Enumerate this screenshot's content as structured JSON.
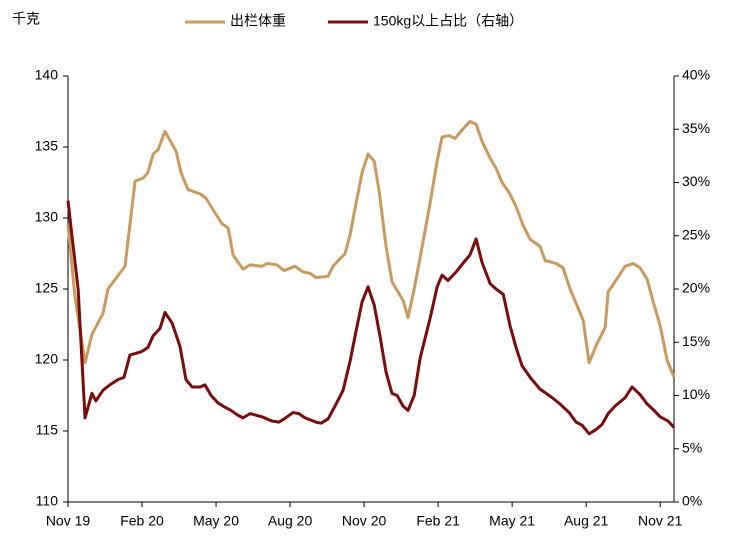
{
  "chart_data": {
    "type": "line",
    "y_label": "千克",
    "xlim": [
      0,
      24.56
    ],
    "xticks": [
      {
        "value": 0,
        "label": "Nov 19"
      },
      {
        "value": 3,
        "label": "Feb 20"
      },
      {
        "value": 6,
        "label": "May 20"
      },
      {
        "value": 9,
        "label": "Aug 20"
      },
      {
        "value": 12,
        "label": "Nov 20"
      },
      {
        "value": 15,
        "label": "Feb 21"
      },
      {
        "value": 18,
        "label": "May 21"
      },
      {
        "value": 21,
        "label": "Aug 21"
      },
      {
        "value": 24,
        "label": "Nov 21"
      }
    ],
    "ylim": [
      110,
      140
    ],
    "yticks": [
      110,
      115,
      120,
      125,
      130,
      135,
      140
    ],
    "y2lim": [
      0,
      40
    ],
    "y2ticks": [
      {
        "value": 0,
        "label": "0%"
      },
      {
        "value": 5,
        "label": "5%"
      },
      {
        "value": 10,
        "label": "10%"
      },
      {
        "value": 15,
        "label": "15%"
      },
      {
        "value": 20,
        "label": "20%"
      },
      {
        "value": 25,
        "label": "25%"
      },
      {
        "value": 30,
        "label": "30%"
      },
      {
        "value": 35,
        "label": "35%"
      },
      {
        "value": 40,
        "label": "40%"
      }
    ],
    "legend": "top",
    "series": [
      {
        "name": "出栏体重",
        "color": "#c99a5b",
        "x": [
          0,
          0.28,
          0.69,
          0.97,
          1.42,
          1.62,
          2.31,
          2.72,
          3.04,
          3.24,
          3.45,
          3.65,
          3.93,
          4.38,
          4.58,
          4.86,
          5.35,
          5.59,
          5.8,
          6.24,
          6.49,
          6.69,
          7.09,
          7.38,
          7.86,
          8.07,
          8.47,
          8.76,
          9.2,
          9.53,
          9.81,
          10.05,
          10.54,
          10.74,
          11.23,
          11.43,
          11.67,
          11.92,
          12.16,
          12.41,
          12.61,
          12.89,
          13.13,
          13.58,
          13.78,
          14.03,
          14.27,
          14.67,
          14.96,
          15.16,
          15.44,
          15.69,
          15.97,
          16.29,
          16.54,
          16.78,
          17.11,
          17.35,
          17.59,
          17.88,
          18.16,
          18.44,
          18.73,
          19.13,
          19.34,
          19.78,
          20.06,
          20.35,
          20.59,
          20.88,
          21.12,
          21.4,
          21.77,
          21.89,
          22.09,
          22.58,
          22.9,
          23.18,
          23.47,
          23.75,
          24,
          24.28,
          24.56
        ],
        "values": [
          129.5,
          124.5,
          119.8,
          121.8,
          123.3,
          125,
          126.6,
          132.6,
          132.8,
          133.2,
          134.5,
          134.8,
          136.1,
          134.7,
          133.2,
          132,
          131.7,
          131.4,
          130.8,
          129.6,
          129.3,
          127.4,
          126.4,
          126.7,
          126.6,
          126.8,
          126.7,
          126.3,
          126.6,
          126.2,
          126.1,
          125.8,
          125.9,
          126.6,
          127.5,
          128.8,
          131,
          133.2,
          134.5,
          134,
          131.9,
          128,
          125.5,
          124.2,
          123,
          125,
          127.2,
          131,
          134,
          135.7,
          135.8,
          135.6,
          136.2,
          136.8,
          136.6,
          135.4,
          134.2,
          133.5,
          132.5,
          131.8,
          130.8,
          129.5,
          128.5,
          128,
          127,
          126.8,
          126.5,
          125,
          124,
          122.8,
          119.8,
          121,
          122.3,
          124.8,
          125.3,
          126.6,
          126.8,
          126.5,
          125.7,
          123.9,
          122.4,
          120,
          118.8
        ]
      },
      {
        "name": "150kg以上占比（右轴）",
        "color": "#7a0c0c",
        "axis": "y2",
        "x": [
          0,
          0.16,
          0.41,
          0.69,
          0.97,
          1.13,
          1.42,
          1.7,
          2.03,
          2.27,
          2.51,
          2.96,
          3.24,
          3.45,
          3.73,
          3.93,
          4.22,
          4.54,
          4.78,
          5.03,
          5.35,
          5.55,
          5.8,
          6.08,
          6.36,
          6.61,
          6.85,
          7.09,
          7.38,
          7.86,
          8.27,
          8.55,
          8.76,
          9.12,
          9.36,
          9.61,
          10.05,
          10.26,
          10.54,
          10.82,
          11.15,
          11.43,
          11.67,
          11.92,
          12.16,
          12.41,
          12.65,
          12.89,
          13.13,
          13.34,
          13.58,
          13.78,
          14.03,
          14.27,
          14.67,
          14.96,
          15.16,
          15.4,
          15.69,
          15.97,
          16.29,
          16.54,
          16.78,
          17.11,
          17.35,
          17.64,
          17.92,
          18.16,
          18.4,
          18.73,
          19.13,
          19.38,
          19.62,
          19.94,
          20.31,
          20.59,
          20.84,
          21.12,
          21.4,
          21.65,
          21.89,
          22.17,
          22.58,
          22.86,
          23.18,
          23.47,
          23.75,
          24,
          24.32,
          24.56
        ],
        "values": [
          28.3,
          25,
          20,
          7.9,
          10.2,
          9.5,
          10.5,
          11,
          11.5,
          11.7,
          13.8,
          14.1,
          14.5,
          15.6,
          16.3,
          17.8,
          16.8,
          14.6,
          11.5,
          10.8,
          10.8,
          11,
          10,
          9.3,
          8.9,
          8.6,
          8.2,
          7.9,
          8.3,
          8,
          7.6,
          7.5,
          7.8,
          8.4,
          8.3,
          7.9,
          7.5,
          7.4,
          7.8,
          9,
          10.5,
          13.2,
          16,
          18.8,
          20.2,
          18.5,
          15.5,
          12.2,
          10.2,
          10,
          9,
          8.6,
          10,
          13.5,
          17.2,
          20.2,
          21.3,
          20.8,
          21.5,
          22.3,
          23.2,
          24.7,
          22.5,
          20.5,
          20,
          19.5,
          16.5,
          14.5,
          12.8,
          11.7,
          10.6,
          10.2,
          9.8,
          9.2,
          8.4,
          7.5,
          7.2,
          6.4,
          6.8,
          7.3,
          8.3,
          9,
          9.8,
          10.8,
          10.1,
          9.2,
          8.6,
          8,
          7.6,
          7
        ]
      }
    ]
  }
}
